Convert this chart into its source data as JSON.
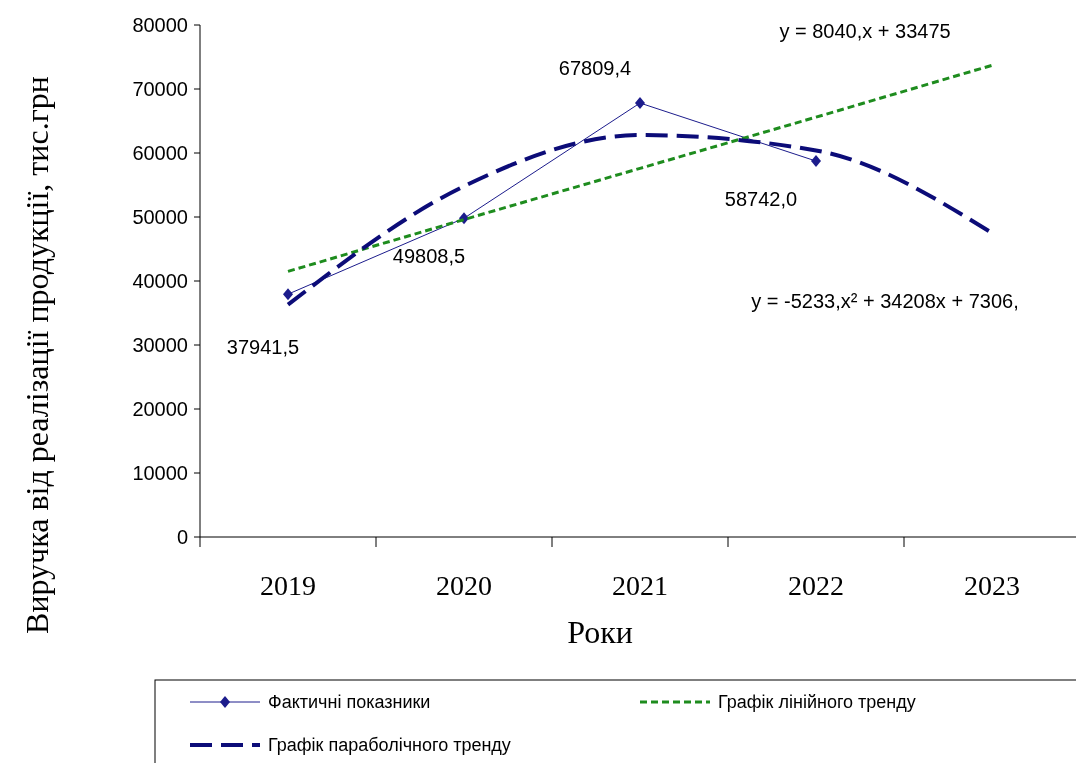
{
  "chart_data": {
    "type": "line",
    "xlabel": "Роки",
    "ylabel": "Виручка від реалізації продукції,  тис.грн",
    "categories": [
      "2019",
      "2020",
      "2021",
      "2022",
      "2023"
    ],
    "series": [
      {
        "name": "Фактичні показники",
        "color": "#1c1c8c",
        "marker": "diamond",
        "line_style": "solid",
        "values": [
          37941.5,
          49808.5,
          67809.4,
          58742.0,
          null
        ],
        "value_labels": [
          "37941,5",
          "49808,5",
          "67809,4",
          "58742,0",
          null
        ]
      },
      {
        "name": "Графік лінійного тренду",
        "color": "#1e8c1e",
        "marker": "none",
        "line_style": "dotted",
        "values": [
          41500,
          49600,
          57600,
          65600,
          73700
        ]
      },
      {
        "name": "Графік параболічного тренду",
        "color": "#0c0c78",
        "marker": "none",
        "line_style": "dashed",
        "values": [
          36300,
          54800,
          62800,
          60400,
          47500
        ]
      }
    ],
    "ylim": [
      0,
      80000
    ],
    "yticks": [
      0,
      10000,
      20000,
      30000,
      40000,
      50000,
      60000,
      70000,
      80000
    ],
    "legend": "bottom",
    "annotations": [
      "y = 8040,x + 33475",
      "y = -5233,x² + 34208x + 7306,"
    ]
  }
}
